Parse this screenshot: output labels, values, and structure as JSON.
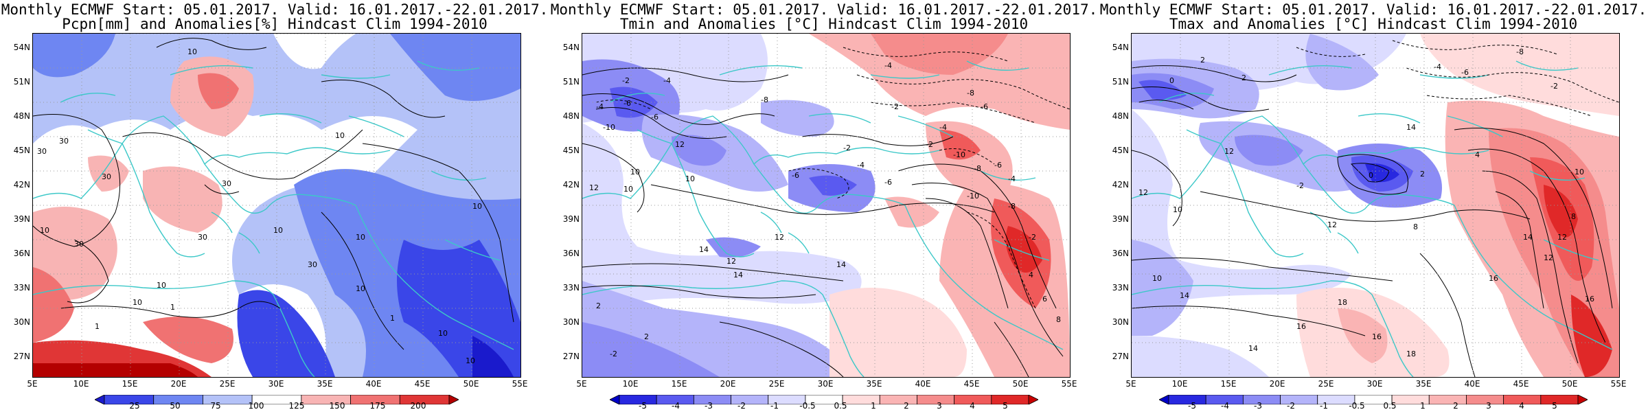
{
  "panels": [
    {
      "id": "precip",
      "title_line1": "Monthly ECMWF Start: 05.01.2017. Valid: 16.01.2017.-22.01.2017.",
      "title_line2": "Pcpn[mm] and Anomalies[%] Hindcast Clim 1994-2010",
      "colorbar_labels": [
        "25",
        "50",
        "75",
        "100",
        "125",
        "150",
        "175",
        "200"
      ],
      "colorbar_colors": [
        "#1a1acc",
        "#3a46e8",
        "#6e86f2",
        "#b4c2f8",
        "#ffffff",
        "#f8b4b4",
        "#f07272",
        "#e03636",
        "#b40000"
      ],
      "contour_labels": [
        "10",
        "30",
        "30",
        "10",
        "30",
        "30",
        "10",
        "10",
        "10",
        "30",
        "10",
        "30",
        "10",
        "30",
        "10",
        "10",
        "10",
        "1",
        "1",
        "1",
        "10"
      ]
    },
    {
      "id": "tmin",
      "title_line1": "Monthly ECMWF Start: 05.01.2017. Valid: 16.01.2017.-22.01.2017.",
      "title_line2": "Tmin and Anomalies [°C] Hindcast Clim 1994-2010",
      "colorbar_labels": [
        "-5",
        "-4",
        "-3",
        "-2",
        "-1",
        "-0.5",
        "0.5",
        "1",
        "2",
        "3",
        "4",
        "5"
      ],
      "colorbar_colors": [
        "#0000c8",
        "#2828e0",
        "#5a5af0",
        "#8c8cf5",
        "#b4b4fa",
        "#dcdcff",
        "#ffffff",
        "#ffdcdc",
        "#fab4b4",
        "#f58c8c",
        "#f05a5a",
        "#e02828",
        "#c80000"
      ],
      "contour_labels": [
        "-2",
        "-4",
        "-4",
        "-6",
        "-6",
        "-10",
        "-8",
        "-4",
        "-2",
        "-8",
        "-6",
        "-4",
        "-10",
        "-8",
        "-6",
        "-4",
        "-2",
        "10",
        "12",
        "12",
        "10",
        "12",
        "-6",
        "-2",
        "-4",
        "14",
        "12",
        "14",
        "10",
        "14",
        "2",
        "2",
        "-2",
        "-6",
        "-8",
        "-10",
        "-2",
        "4",
        "6",
        "8"
      ]
    },
    {
      "id": "tmax",
      "title_line1": "Monthly ECMWF Start: 05.01.2017. Valid: 16.01.2017.-22.01.2017.",
      "title_line2": "Tmax and Anomalies [°C] Hindcast Clim 1994-2010",
      "colorbar_labels": [
        "-5",
        "-4",
        "-3",
        "-2",
        "-1",
        "-0.5",
        "0.5",
        "1",
        "2",
        "3",
        "4",
        "5"
      ],
      "colorbar_colors": [
        "#0000c8",
        "#2828e0",
        "#5a5af0",
        "#8c8cf5",
        "#b4b4fa",
        "#dcdcff",
        "#ffffff",
        "#ffdcdc",
        "#fab4b4",
        "#f58c8c",
        "#f05a5a",
        "#e02828",
        "#c80000"
      ],
      "contour_labels": [
        "2",
        "0",
        "2",
        "-4",
        "-6",
        "-8",
        "-2",
        "0",
        "2",
        "4",
        "12",
        "12",
        "10",
        "12",
        "8",
        "14",
        "14",
        "10",
        "16",
        "16",
        "16",
        "18",
        "18",
        "16",
        "14",
        "12",
        "10",
        "-2",
        "8",
        "12",
        "14"
      ]
    }
  ],
  "lat_labels": [
    "54N",
    "51N",
    "48N",
    "45N",
    "42N",
    "39N",
    "36N",
    "33N",
    "30N",
    "27N"
  ],
  "lon_labels": [
    "5E",
    "10E",
    "15E",
    "20E",
    "25E",
    "30E",
    "35E",
    "40E",
    "45E",
    "50E",
    "55E"
  ],
  "colors": {
    "coast": "#3cc8c8",
    "contour": "#000000",
    "grid": "#999999"
  }
}
